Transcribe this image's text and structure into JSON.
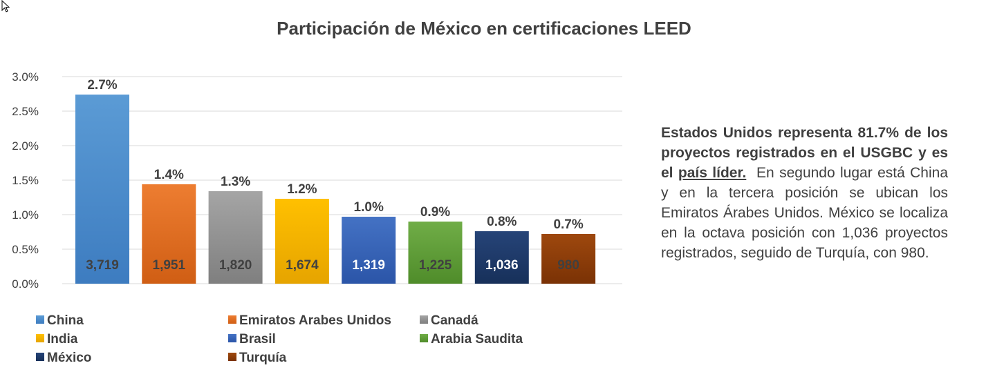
{
  "chart_data": {
    "type": "bar",
    "title": "Participación de México en certificaciones LEED",
    "xlabel": "",
    "ylabel": "",
    "ylim": [
      0,
      3.0
    ],
    "yticks": [
      "3.0%",
      "2.5%",
      "2.0%",
      "1.5%",
      "1.0%",
      "0.5%",
      "0.0%"
    ],
    "ytick_values": [
      3.0,
      2.5,
      2.0,
      1.5,
      1.0,
      0.5,
      0.0
    ],
    "grid": true,
    "legend_position": "bottom",
    "categories": [
      "China",
      "Emiratos Arabes Unidos",
      "Canadá",
      "India",
      "Brasil",
      "Arabia Saudita",
      "México",
      "Turquía"
    ],
    "values": [
      2.74,
      1.44,
      1.34,
      1.23,
      0.97,
      0.9,
      0.76,
      0.72
    ],
    "pct_labels": [
      "2.7%",
      "1.4%",
      "1.3%",
      "1.2%",
      "1.0%",
      "0.9%",
      "0.8%",
      "0.7%"
    ],
    "counts": [
      "3,719",
      "1,951",
      "1,820",
      "1,674",
      "1,319",
      "1,225",
      "1,036",
      "980"
    ],
    "colors": [
      "#5b9bd5",
      "#ed7d31",
      "#a5a5a5",
      "#ffc000",
      "#4472c4",
      "#70ad47",
      "#264478",
      "#9e480e"
    ],
    "colors_dark": [
      "#3d7cc0",
      "#d05e14",
      "#7f7f7f",
      "#e6a400",
      "#2b55a8",
      "#4f8c2a",
      "#17305a",
      "#7a3205"
    ],
    "count_label_colors": [
      "#404040",
      "#404040",
      "#404040",
      "#404040",
      "#ffffff",
      "#404040",
      "#ffffff",
      "#404040"
    ]
  },
  "side_text": {
    "bold_part": "Estados Unidos representa 81.7% de los proyectos registrados en el USGBC y es el",
    "underlined_part": "país líder.",
    "rest_part": "En segundo lugar está China y en la tercera posición se ubican los Emiratos Árabes Unidos. México se localiza en la octava posición con 1,036 proyectos registrados, seguido de Turquía, con 980."
  }
}
